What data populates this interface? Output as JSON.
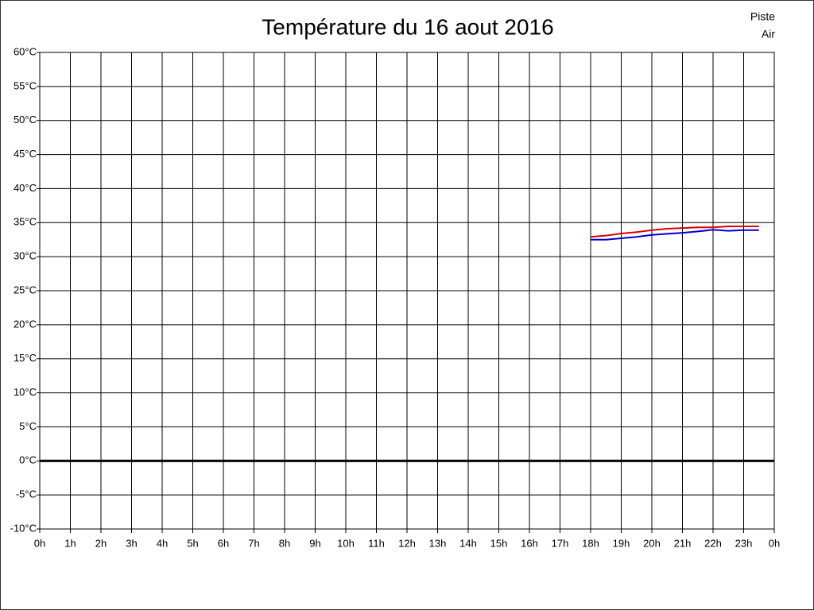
{
  "chart_data": {
    "type": "line",
    "title": "Température du 16 aout 2016",
    "x": [
      18,
      18.5,
      19,
      19.5,
      20,
      20.5,
      21,
      21.5,
      22,
      22.5,
      23,
      23.5
    ],
    "series": [
      {
        "name": "Piste",
        "color": "#dd0000",
        "values": [
          32.9,
          33.1,
          33.4,
          33.6,
          33.9,
          34.1,
          34.2,
          34.3,
          34.3,
          34.45,
          34.45,
          34.45
        ]
      },
      {
        "name": "Air",
        "color": "#0000cc",
        "values": [
          32.5,
          32.5,
          32.7,
          32.9,
          33.2,
          33.35,
          33.5,
          33.7,
          33.95,
          33.8,
          33.9,
          33.9
        ]
      }
    ],
    "xlim": [
      0,
      24
    ],
    "xticks": [
      {
        "value": 0,
        "label": "0h"
      },
      {
        "value": 1,
        "label": "1h"
      },
      {
        "value": 2,
        "label": "2h"
      },
      {
        "value": 3,
        "label": "3h"
      },
      {
        "value": 4,
        "label": "4h"
      },
      {
        "value": 5,
        "label": "5h"
      },
      {
        "value": 6,
        "label": "6h"
      },
      {
        "value": 7,
        "label": "7h"
      },
      {
        "value": 8,
        "label": "8h"
      },
      {
        "value": 9,
        "label": "9h"
      },
      {
        "value": 10,
        "label": "10h"
      },
      {
        "value": 11,
        "label": "11h"
      },
      {
        "value": 12,
        "label": "12h"
      },
      {
        "value": 13,
        "label": "13h"
      },
      {
        "value": 14,
        "label": "14h"
      },
      {
        "value": 15,
        "label": "15h"
      },
      {
        "value": 16,
        "label": "16h"
      },
      {
        "value": 17,
        "label": "17h"
      },
      {
        "value": 18,
        "label": "18h"
      },
      {
        "value": 19,
        "label": "19h"
      },
      {
        "value": 20,
        "label": "20h"
      },
      {
        "value": 21,
        "label": "21h"
      },
      {
        "value": 22,
        "label": "22h"
      },
      {
        "value": 23,
        "label": "23h"
      },
      {
        "value": 24,
        "label": "0h"
      }
    ],
    "ylim": [
      -10,
      60
    ],
    "yticks": [
      {
        "value": -10,
        "label": "-10°C"
      },
      {
        "value": -5,
        "label": "-5°C"
      },
      {
        "value": 0,
        "label": "0°C"
      },
      {
        "value": 5,
        "label": "5°C"
      },
      {
        "value": 10,
        "label": "10°C"
      },
      {
        "value": 15,
        "label": "15°C"
      },
      {
        "value": 20,
        "label": "20°C"
      },
      {
        "value": 25,
        "label": "25°C"
      },
      {
        "value": 30,
        "label": "30°C"
      },
      {
        "value": 35,
        "label": "35°C"
      },
      {
        "value": 40,
        "label": "40°C"
      },
      {
        "value": 45,
        "label": "45°C"
      },
      {
        "value": 50,
        "label": "50°C"
      },
      {
        "value": 55,
        "label": "55°C"
      },
      {
        "value": 60,
        "label": "60°C"
      }
    ],
    "grid": true,
    "legend": "top-right"
  }
}
